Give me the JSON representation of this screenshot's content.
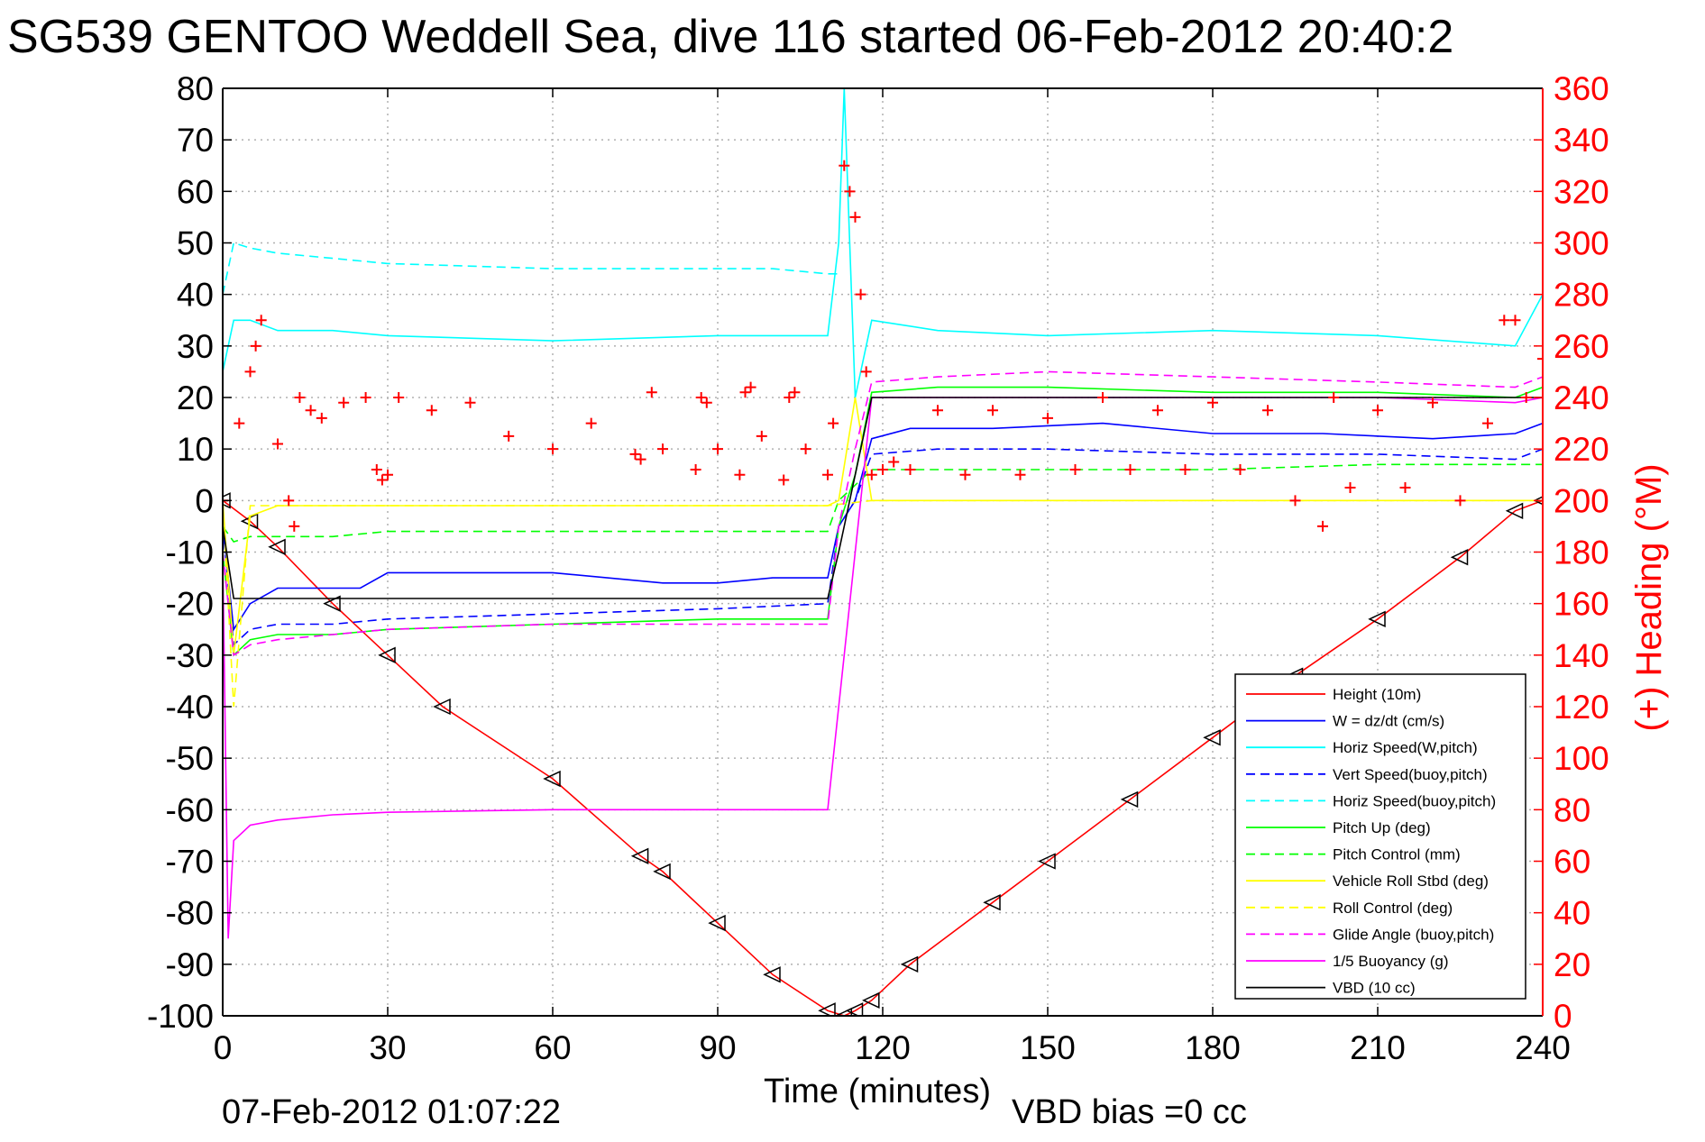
{
  "chart_data": {
    "type": "line",
    "title": "SG539 GENTOO Weddell Sea, dive 116 started 06-Feb-2012 20:40:2",
    "xlabel": "Time (minutes)",
    "ylabel": "",
    "y2label": "(+) Heading (°M)",
    "footer_left": "07-Feb-2012 01:07:22",
    "footer_right": "VBD bias =0 cc",
    "xlim": [
      0,
      240
    ],
    "ylim": [
      -100,
      80
    ],
    "y2lim": [
      0,
      360
    ],
    "xticks": [
      0,
      30,
      60,
      90,
      120,
      150,
      180,
      210,
      240
    ],
    "yticks": [
      80,
      70,
      60,
      50,
      40,
      30,
      20,
      10,
      0,
      -10,
      -20,
      -30,
      -40,
      -50,
      -60,
      -70,
      -80,
      -90,
      -100
    ],
    "y2ticks": [
      360,
      340,
      320,
      300,
      280,
      260,
      240,
      220,
      200,
      180,
      160,
      140,
      120,
      100,
      80,
      60,
      40,
      20,
      0
    ],
    "grid": true,
    "legend_position": "bottom-right",
    "colors": {
      "axis": "#000000",
      "right_axis": "#ff0000",
      "grid": "#b0b0b0"
    },
    "legend": [
      {
        "label": "Height (10m)",
        "color": "#ff0000",
        "dash": "solid"
      },
      {
        "label": "W = dz/dt (cm/s)",
        "color": "#0000ff",
        "dash": "solid"
      },
      {
        "label": "Horiz Speed(W,pitch)",
        "color": "#00ffff",
        "dash": "solid"
      },
      {
        "label": "Vert Speed(buoy,pitch)",
        "color": "#0000ff",
        "dash": "dashed"
      },
      {
        "label": "Horiz Speed(buoy,pitch)",
        "color": "#00ffff",
        "dash": "dashed"
      },
      {
        "label": "Pitch Up (deg)",
        "color": "#00ff00",
        "dash": "solid"
      },
      {
        "label": "Pitch Control (mm)",
        "color": "#00ff00",
        "dash": "dashed"
      },
      {
        "label": "Vehicle Roll Stbd (deg)",
        "color": "#ffff00",
        "dash": "solid"
      },
      {
        "label": "Roll Control (deg)",
        "color": "#ffff00",
        "dash": "dashed"
      },
      {
        "label": "Glide Angle (buoy,pitch)",
        "color": "#ff00ff",
        "dash": "dashed"
      },
      {
        "label": "1/5 Buoyancy (g)",
        "color": "#ff00ff",
        "dash": "solid"
      },
      {
        "label": "VBD (10 cc)",
        "color": "#000000",
        "dash": "solid"
      }
    ],
    "series": [
      {
        "name": "Height (10m)",
        "color": "#ff0000",
        "dash": "solid",
        "x": [
          0,
          5,
          10,
          20,
          30,
          40,
          60,
          76,
          80,
          90,
          100,
          110,
          113,
          115,
          118,
          125,
          140,
          150,
          165,
          180,
          195,
          210,
          225,
          235,
          240
        ],
        "y": [
          0,
          -4,
          -9,
          -20,
          -30,
          -40,
          -54,
          -69,
          -72,
          -82,
          -92,
          -99,
          -100,
          -99,
          -97,
          -90,
          -78,
          -70,
          -58,
          -46,
          -34,
          -23,
          -11,
          -2,
          0
        ]
      },
      {
        "name": "W = dz/dt (cm/s)",
        "color": "#0000ff",
        "dash": "solid",
        "x": [
          0,
          2,
          5,
          10,
          15,
          20,
          25,
          30,
          40,
          60,
          80,
          90,
          100,
          110,
          112,
          115,
          118,
          125,
          140,
          160,
          180,
          200,
          220,
          235,
          240
        ],
        "y": [
          -5,
          -25,
          -20,
          -17,
          -17,
          -17,
          -17,
          -14,
          -14,
          -14,
          -16,
          -16,
          -15,
          -15,
          -5,
          0,
          12,
          14,
          14,
          15,
          13,
          13,
          12,
          13,
          15
        ]
      },
      {
        "name": "Horiz Speed(W,pitch)",
        "color": "#00ffff",
        "dash": "solid",
        "x": [
          0,
          2,
          5,
          10,
          20,
          30,
          60,
          90,
          110,
          112,
          113,
          115,
          118,
          130,
          150,
          180,
          210,
          235,
          240
        ],
        "y": [
          25,
          35,
          35,
          33,
          33,
          32,
          31,
          32,
          32,
          50,
          80,
          20,
          35,
          33,
          32,
          33,
          32,
          30,
          40
        ]
      },
      {
        "name": "Vert Speed(buoy,pitch)",
        "color": "#0000ff",
        "dash": "dashed",
        "x": [
          0,
          2,
          5,
          10,
          20,
          30,
          60,
          90,
          110,
          112,
          115,
          118,
          130,
          150,
          180,
          210,
          235,
          240
        ],
        "y": [
          -5,
          -28,
          -25,
          -24,
          -24,
          -23,
          -22,
          -21,
          -20,
          -5,
          0,
          9,
          10,
          10,
          9,
          9,
          8,
          10
        ]
      },
      {
        "name": "Horiz Speed(buoy,pitch)",
        "color": "#00ffff",
        "dash": "dashed",
        "x": [
          0,
          2,
          5,
          10,
          20,
          30,
          60,
          90,
          100,
          110,
          112
        ],
        "y": [
          40,
          50,
          49,
          48,
          47,
          46,
          45,
          45,
          45,
          44,
          44
        ]
      },
      {
        "name": "Pitch Up (deg)",
        "color": "#00ff00",
        "dash": "solid",
        "x": [
          0,
          2,
          5,
          10,
          20,
          30,
          60,
          90,
          110,
          112,
          115,
          118,
          130,
          150,
          180,
          210,
          235,
          240
        ],
        "y": [
          -10,
          -30,
          -27,
          -26,
          -26,
          -25,
          -24,
          -23,
          -23,
          -5,
          5,
          21,
          22,
          22,
          21,
          21,
          20,
          22
        ]
      },
      {
        "name": "Pitch Control (mm)",
        "color": "#00ff00",
        "dash": "dashed",
        "x": [
          0,
          2,
          5,
          10,
          20,
          30,
          60,
          90,
          110,
          112,
          115,
          118,
          130,
          150,
          180,
          210,
          235,
          240
        ],
        "y": [
          -5,
          -8,
          -7,
          -7,
          -7,
          -6,
          -6,
          -6,
          -6,
          0,
          3,
          6,
          6,
          6,
          6,
          7,
          7,
          7
        ]
      },
      {
        "name": "Vehicle Roll Stbd (deg)",
        "color": "#ffff00",
        "dash": "solid",
        "x": [
          0,
          2,
          5,
          10,
          20,
          30,
          60,
          90,
          110,
          112,
          115,
          118,
          130,
          150,
          180,
          210,
          235,
          240
        ],
        "y": [
          0,
          -30,
          -3,
          -1,
          -1,
          -1,
          -1,
          -1,
          -1,
          0,
          20,
          0,
          0,
          0,
          0,
          0,
          0,
          0
        ]
      },
      {
        "name": "Roll Control (deg)",
        "color": "#ffff00",
        "dash": "dashed",
        "x": [
          0,
          2,
          5,
          10,
          20,
          30,
          60,
          90,
          110,
          118,
          130,
          150,
          180,
          210,
          235,
          240
        ],
        "y": [
          0,
          -40,
          -1,
          -1,
          -1,
          -1,
          -1,
          -1,
          -1,
          0,
          0,
          0,
          0,
          0,
          0,
          0
        ]
      },
      {
        "name": "Glide Angle (buoy,pitch)",
        "color": "#ff00ff",
        "dash": "dashed",
        "x": [
          0,
          2,
          5,
          10,
          20,
          30,
          60,
          90,
          110,
          112,
          115,
          118,
          130,
          150,
          180,
          210,
          235,
          240
        ],
        "y": [
          -10,
          -30,
          -28,
          -27,
          -26,
          -25,
          -24,
          -24,
          -24,
          -5,
          10,
          23,
          24,
          25,
          24,
          23,
          22,
          24
        ]
      },
      {
        "name": "1/5 Buoyancy (g)",
        "color": "#ff00ff",
        "dash": "solid",
        "x": [
          0,
          1,
          2,
          3,
          5,
          10,
          20,
          30,
          60,
          90,
          110,
          112,
          118,
          150,
          180,
          210,
          235,
          240
        ],
        "y": [
          -10,
          -85,
          -66,
          -65,
          -63,
          -62,
          -61,
          -60.5,
          -60,
          -60,
          -60,
          -40,
          20,
          20,
          20,
          20,
          19,
          20
        ]
      },
      {
        "name": "VBD (10 cc)",
        "color": "#000000",
        "dash": "solid",
        "x": [
          0,
          2,
          5,
          10,
          20,
          30,
          60,
          90,
          110,
          112,
          118,
          150,
          180,
          210,
          235,
          240
        ],
        "y": [
          -5,
          -19,
          -19,
          -19,
          -19,
          -19,
          -19,
          -19,
          -19,
          -10,
          20,
          20,
          20,
          20,
          20,
          20
        ]
      },
      {
        "name": "(+) Heading (°M)",
        "color": "#ff0000",
        "axis": "right",
        "marker": "+",
        "x": [
          0,
          3,
          5,
          6,
          7,
          10,
          12,
          13,
          14,
          16,
          18,
          22,
          26,
          28,
          29,
          30,
          32,
          38,
          45,
          52,
          60,
          67,
          75,
          76,
          78,
          80,
          86,
          87,
          88,
          90,
          94,
          95,
          96,
          98,
          102,
          103,
          104,
          106,
          110,
          111,
          113,
          114,
          115,
          116,
          117,
          118,
          120,
          122,
          125,
          130,
          135,
          140,
          145,
          150,
          155,
          160,
          165,
          170,
          175,
          180,
          185,
          190,
          195,
          200,
          202,
          205,
          210,
          215,
          220,
          225,
          230,
          233,
          235,
          237,
          240
        ],
        "y": [
          200,
          230,
          250,
          260,
          270,
          222,
          200,
          190,
          240,
          235,
          232,
          238,
          240,
          212,
          208,
          210,
          240,
          235,
          238,
          225,
          220,
          230,
          218,
          216,
          242,
          220,
          212,
          240,
          238,
          220,
          210,
          242,
          244,
          225,
          208,
          240,
          242,
          220,
          210,
          230,
          330,
          320,
          310,
          280,
          250,
          210,
          212,
          215,
          212,
          235,
          210,
          235,
          210,
          232,
          212,
          240,
          212,
          235,
          212,
          238,
          212,
          235,
          200,
          190,
          240,
          205,
          235,
          205,
          238,
          200,
          230,
          270,
          270,
          240,
          255
        ]
      }
    ]
  }
}
